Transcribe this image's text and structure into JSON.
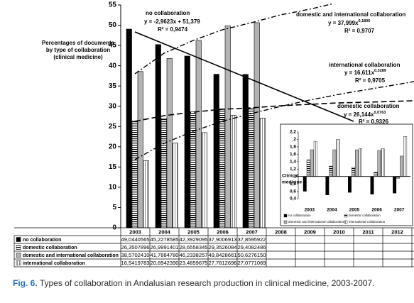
{
  "chart_data": [
    {
      "type": "bar",
      "y_label": [
        "Percentages  of documents",
        "by type of collaboration",
        "(clinical medicine)"
      ],
      "categories": [
        "2003",
        "2004",
        "2005",
        "2006",
        "2007",
        "2008",
        "2009",
        "2010",
        "2011",
        "2012"
      ],
      "ylim": [
        0,
        55
      ],
      "yticks": [
        0,
        5,
        10,
        15,
        20,
        25,
        30,
        35,
        40,
        45,
        50,
        55
      ],
      "series": [
        {
          "name": "no collaboration",
          "color": "#000000",
          "pattern": "solid",
          "values": [
            49.0440565,
            45.2278585,
            42.3929095,
            37.9006913,
            37.8595922,
            null,
            null,
            null,
            null,
            null
          ],
          "value_labels": [
            "49,0440565",
            "45,2278585",
            "42,3929095",
            "37,9006913",
            "37,8595922",
            null,
            null,
            null,
            null,
            null
          ]
        },
        {
          "name": "domestic collaboration",
          "color": "#ffffff",
          "pattern": "horizontal",
          "values": [
            26.3507896,
            26.9991401,
            28.6558345,
            29.3526084,
            29.4082486,
            null,
            null,
            null,
            null,
            null
          ],
          "value_labels": [
            "26,3507896",
            "26,9991401",
            "28,6558345",
            "29,3526084",
            "29,4082486",
            null,
            null,
            null,
            null,
            null
          ]
        },
        {
          "name": "domestic and international collaboration",
          "color": "#b3b3b3",
          "pattern": "solid",
          "values": [
            38.570241,
            41.788478,
            46.2338257,
            49.8428661,
            50.627615,
            null,
            null,
            null,
            null,
            null
          ],
          "value_labels": [
            "38,5702410",
            "41,7884780",
            "46,2338257",
            "49,8428661",
            "50,6276150",
            null,
            null,
            null,
            null,
            null
          ]
        },
        {
          "name": "international collaboration",
          "color": "#ffffff",
          "pattern": "vertical",
          "values": [
            16.5419783,
            20.894239,
            23.4859675,
            27.7812696,
            27.0771069,
            null,
            null,
            null,
            null,
            null
          ],
          "value_labels": [
            "16,5419783",
            "20,8942390",
            "23,4859675",
            "27,7812696",
            "27,0771069",
            null,
            null,
            null,
            null,
            null
          ]
        }
      ],
      "annotations": [
        {
          "lines": [
            {
              "text": "no collaboration"
            },
            {
              "text": "y = -2,9623x + 51,379"
            },
            {
              "text": "R² = 0,9474"
            }
          ]
        },
        {
          "lines": [
            {
              "text": "domestic and international collaboration"
            },
            {
              "text": "y = 37,999x",
              "sup": "0,1805"
            },
            {
              "text": "R² = 0,9707"
            }
          ]
        },
        {
          "lines": [
            {
              "text": "international collaboration"
            },
            {
              "text": "y = 16,611x",
              "sup": "0,3289"
            },
            {
              "text": "R² = 0,9705"
            }
          ]
        },
        {
          "lines": [
            {
              "text": "domestic collaboration"
            },
            {
              "text": "y = 26,144x",
              "sup": "0,0763"
            },
            {
              "text": "R² = 0,9326"
            }
          ]
        }
      ]
    },
    {
      "type": "bar",
      "y_label": [
        "Clinical",
        "medicine"
      ],
      "categories": [
        "2003",
        "2004",
        "2005",
        "2006",
        "2007"
      ],
      "baseline": 1,
      "ylim": [
        0.4,
        2.2
      ],
      "yticks": [
        {
          "value": 0.4,
          "label": "0,4"
        },
        {
          "value": 0.6,
          "label": "0,6"
        },
        {
          "value": 0.8,
          "label": "0,8"
        },
        1,
        {
          "value": 1.2,
          "label": "1,2"
        },
        {
          "value": 1.4,
          "label": "1,4"
        },
        {
          "value": 1.6,
          "label": "1,6"
        },
        {
          "value": 1.8,
          "label": "1,8"
        },
        2,
        {
          "value": 2.2,
          "label": "2,2"
        }
      ],
      "series": [
        {
          "name": "no collaboration",
          "color": "#000000",
          "pattern": "solid",
          "values": [
            0.6,
            0.5,
            0.57,
            0.52,
            0.55
          ]
        },
        {
          "name": "domestic collaboration",
          "color": "#ffffff",
          "pattern": "horizontal",
          "values": [
            1.45,
            1.28,
            1.25,
            1.12,
            0.95
          ]
        },
        {
          "name": "domestic and international collaboration",
          "color": "#b3b3b3",
          "pattern": "solid",
          "values": [
            1.72,
            1.72,
            1.72,
            1.7,
            1.55
          ]
        },
        {
          "name": "international collaboration",
          "color": "#ffffff",
          "pattern": "vertical",
          "values": [
            1.95,
            2.0,
            1.75,
            1.75,
            2.08
          ]
        }
      ]
    }
  ],
  "caption": {
    "label": "Fig. 6.",
    "text": "Types of collaboration in Andalusian research production in clinical medicine, 2003-2007."
  }
}
